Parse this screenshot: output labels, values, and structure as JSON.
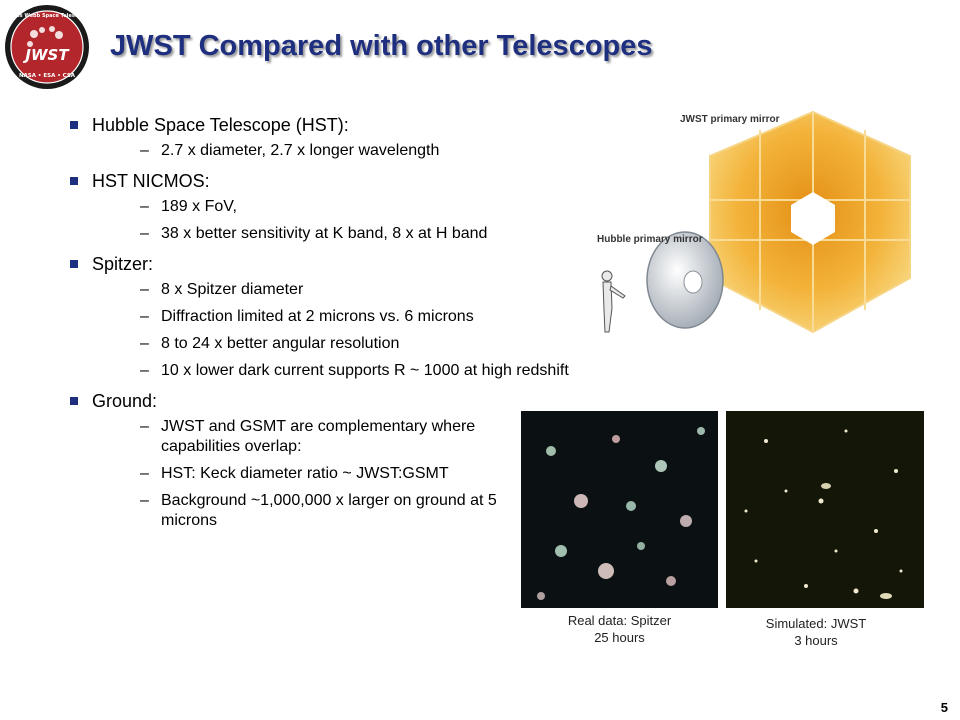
{
  "header": {
    "title": "JWST Compared with other Telescopes",
    "logo_text": "JWST",
    "logo_ring_text": "James Webb Space Telescope",
    "logo_agencies": "NASA • ESA • CSA"
  },
  "bullets": [
    {
      "label": "Hubble Space Telescope (HST):",
      "items": [
        "2.7 x diameter, 2.7 x longer wavelength"
      ]
    },
    {
      "label": "HST NICMOS:",
      "items": [
        "189 x FoV,",
        "38 x better sensitivity at K band, 8 x at H band"
      ]
    },
    {
      "label": "Spitzer:",
      "items": [
        "8 x Spitzer diameter",
        "Diffraction limited at 2 microns vs. 6 microns",
        "8 to 24 x better angular resolution",
        "10 x lower dark current supports R ~ 1000 at high redshift"
      ]
    },
    {
      "label": "Ground:",
      "items": [
        "JWST and GSMT are complementary where capabilities overlap:",
        "HST: Keck diameter ratio ~ JWST:GSMT",
        "Background ~1,000,000 x larger on ground at 5 microns"
      ]
    }
  ],
  "mirror_figure": {
    "jwst_label": "JWST primary mirror",
    "hubble_label": "Hubble primary mirror"
  },
  "images": {
    "spitzer_caption_1": "Real data: Spitzer",
    "spitzer_caption_2": "25 hours",
    "jwst_caption_1": "Simulated: JWST",
    "jwst_caption_2": "3 hours"
  },
  "footer": {
    "page_number": "5"
  },
  "colors": {
    "title": "#1f2f7f",
    "bullet": "#1f2f7f",
    "mirror": "#f0b433",
    "logo": "#c0282d"
  }
}
